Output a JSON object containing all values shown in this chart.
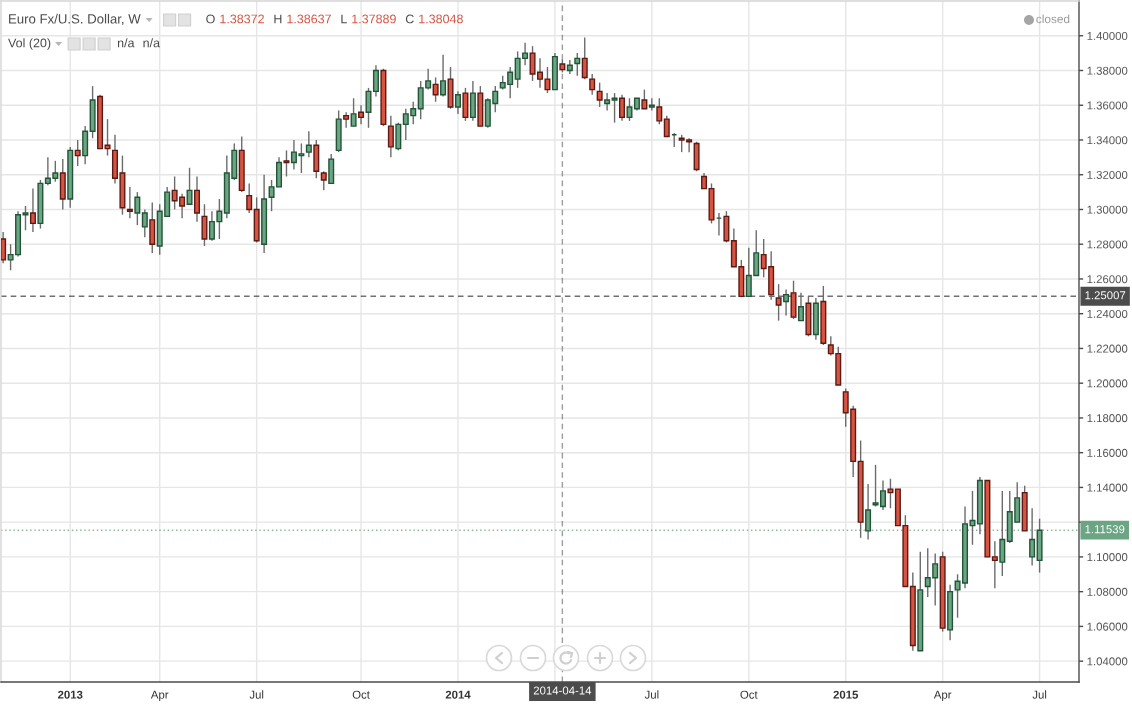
{
  "chart_data": {
    "type": "candlestick",
    "title": "Euro Fx/U.S. Dollar, W",
    "annotations": [
      "O 1.38372",
      "H 1.38637",
      "L 1.37889",
      "C 1.38048",
      "Vol (20)",
      "n/a",
      "n/a",
      "closed"
    ],
    "x": [
      "2012-11-05",
      "2012-11-12",
      "2012-11-19",
      "2012-11-26",
      "2012-12-03",
      "2012-12-10",
      "2012-12-17",
      "2012-12-24",
      "2012-12-31",
      "2013-01-07",
      "2013-01-14",
      "2013-01-21",
      "2013-01-28",
      "2013-02-04",
      "2013-02-11",
      "2013-02-18",
      "2013-02-25",
      "2013-03-04",
      "2013-03-11",
      "2013-03-18",
      "2013-03-25",
      "2013-04-01",
      "2013-04-08",
      "2013-04-15",
      "2013-04-22",
      "2013-04-29",
      "2013-05-06",
      "2013-05-13",
      "2013-05-20",
      "2013-05-27",
      "2013-06-03",
      "2013-06-10",
      "2013-06-17",
      "2013-06-24",
      "2013-07-01",
      "2013-07-08",
      "2013-07-15",
      "2013-07-22",
      "2013-07-29",
      "2013-08-05",
      "2013-08-12",
      "2013-08-19",
      "2013-08-26",
      "2013-09-02",
      "2013-09-09",
      "2013-09-16",
      "2013-09-23",
      "2013-09-30",
      "2013-10-07",
      "2013-10-14",
      "2013-10-21",
      "2013-10-28",
      "2013-11-04",
      "2013-11-11",
      "2013-11-18",
      "2013-11-25",
      "2013-12-02",
      "2013-12-09",
      "2013-12-16",
      "2013-12-23",
      "2013-12-30",
      "2014-01-06",
      "2014-01-13",
      "2014-01-20",
      "2014-01-27",
      "2014-02-03",
      "2014-02-10",
      "2014-02-17",
      "2014-02-24",
      "2014-03-03",
      "2014-03-10",
      "2014-03-17",
      "2014-03-24",
      "2014-03-31",
      "2014-04-07",
      "2014-04-14",
      "2014-04-21",
      "2014-04-28",
      "2014-05-05",
      "2014-05-12",
      "2014-05-19",
      "2014-05-26",
      "2014-06-02",
      "2014-06-09",
      "2014-06-16",
      "2014-06-23",
      "2014-06-30",
      "2014-07-07",
      "2014-07-14",
      "2014-07-21",
      "2014-07-28",
      "2014-08-04",
      "2014-08-11",
      "2014-08-18",
      "2014-08-25",
      "2014-09-01",
      "2014-09-08",
      "2014-09-15",
      "2014-09-22",
      "2014-09-29",
      "2014-10-06",
      "2014-10-13",
      "2014-10-20",
      "2014-10-27",
      "2014-11-03",
      "2014-11-10",
      "2014-11-17",
      "2014-11-24",
      "2014-12-01",
      "2014-12-08",
      "2014-12-15",
      "2014-12-22",
      "2014-12-29",
      "2015-01-05",
      "2015-01-12",
      "2015-01-19",
      "2015-01-26",
      "2015-02-02",
      "2015-02-09",
      "2015-02-16",
      "2015-02-23",
      "2015-03-02",
      "2015-03-09",
      "2015-03-16",
      "2015-03-23",
      "2015-03-30",
      "2015-04-06",
      "2015-04-13",
      "2015-04-20",
      "2015-04-27",
      "2015-05-04",
      "2015-05-11",
      "2015-05-18",
      "2015-05-25",
      "2015-06-01",
      "2015-06-08",
      "2015-06-15",
      "2015-06-22",
      "2015-06-29",
      "2015-07-06"
    ],
    "ohlc": [
      [
        1.283,
        1.287,
        1.269,
        1.271
      ],
      [
        1.271,
        1.28,
        1.265,
        1.274
      ],
      [
        1.274,
        1.299,
        1.273,
        1.297
      ],
      [
        1.297,
        1.302,
        1.288,
        1.298
      ],
      [
        1.298,
        1.312,
        1.287,
        1.292
      ],
      [
        1.292,
        1.317,
        1.289,
        1.315
      ],
      [
        1.315,
        1.33,
        1.314,
        1.318
      ],
      [
        1.318,
        1.328,
        1.316,
        1.321
      ],
      [
        1.321,
        1.329,
        1.3,
        1.306
      ],
      [
        1.306,
        1.336,
        1.301,
        1.334
      ],
      [
        1.334,
        1.34,
        1.325,
        1.331
      ],
      [
        1.331,
        1.348,
        1.326,
        1.345
      ],
      [
        1.345,
        1.371,
        1.341,
        1.363
      ],
      [
        1.365,
        1.366,
        1.335,
        1.335
      ],
      [
        1.337,
        1.352,
        1.331,
        1.335
      ],
      [
        1.334,
        1.343,
        1.315,
        1.318
      ],
      [
        1.321,
        1.331,
        1.297,
        1.301
      ],
      [
        1.3,
        1.313,
        1.295,
        1.299
      ],
      [
        1.298,
        1.31,
        1.291,
        1.307
      ],
      [
        1.29,
        1.3,
        1.284,
        1.298
      ],
      [
        1.294,
        1.304,
        1.275,
        1.28
      ],
      [
        1.279,
        1.303,
        1.274,
        1.299
      ],
      [
        1.296,
        1.313,
        1.296,
        1.31
      ],
      [
        1.311,
        1.319,
        1.3,
        1.305
      ],
      [
        1.307,
        1.309,
        1.295,
        1.302
      ],
      [
        1.303,
        1.324,
        1.303,
        1.311
      ],
      [
        1.311,
        1.319,
        1.293,
        1.298
      ],
      [
        1.296,
        1.303,
        1.279,
        1.283
      ],
      [
        1.283,
        1.299,
        1.282,
        1.293
      ],
      [
        1.293,
        1.306,
        1.283,
        1.299
      ],
      [
        1.298,
        1.331,
        1.295,
        1.321
      ],
      [
        1.318,
        1.338,
        1.317,
        1.334
      ],
      [
        1.334,
        1.342,
        1.31,
        1.311
      ],
      [
        1.308,
        1.315,
        1.298,
        1.3
      ],
      [
        1.3,
        1.307,
        1.281,
        1.282
      ],
      [
        1.28,
        1.32,
        1.275,
        1.306
      ],
      [
        1.307,
        1.317,
        1.299,
        1.313
      ],
      [
        1.313,
        1.33,
        1.313,
        1.327
      ],
      [
        1.328,
        1.334,
        1.319,
        1.327
      ],
      [
        1.327,
        1.34,
        1.323,
        1.333
      ],
      [
        1.331,
        1.338,
        1.321,
        1.332
      ],
      [
        1.333,
        1.345,
        1.33,
        1.337
      ],
      [
        1.337,
        1.34,
        1.318,
        1.322
      ],
      [
        1.321,
        1.322,
        1.311,
        1.317
      ],
      [
        1.315,
        1.332,
        1.315,
        1.329
      ],
      [
        1.334,
        1.357,
        1.333,
        1.352
      ],
      [
        1.354,
        1.356,
        1.347,
        1.352
      ],
      [
        1.348,
        1.364,
        1.348,
        1.355
      ],
      [
        1.356,
        1.36,
        1.349,
        1.353
      ],
      [
        1.356,
        1.37,
        1.347,
        1.368
      ],
      [
        1.368,
        1.383,
        1.365,
        1.38
      ],
      [
        1.38,
        1.381,
        1.348,
        1.349
      ],
      [
        1.348,
        1.354,
        1.33,
        1.336
      ],
      [
        1.335,
        1.35,
        1.334,
        1.349
      ],
      [
        1.349,
        1.358,
        1.34,
        1.355
      ],
      [
        1.354,
        1.362,
        1.349,
        1.358
      ],
      [
        1.358,
        1.374,
        1.352,
        1.37
      ],
      [
        1.37,
        1.381,
        1.369,
        1.374
      ],
      [
        1.372,
        1.376,
        1.362,
        1.366
      ],
      [
        1.366,
        1.389,
        1.365,
        1.374
      ],
      [
        1.375,
        1.382,
        1.358,
        1.359
      ],
      [
        1.359,
        1.368,
        1.355,
        1.366
      ],
      [
        1.367,
        1.37,
        1.351,
        1.353
      ],
      [
        1.353,
        1.374,
        1.351,
        1.367
      ],
      [
        1.367,
        1.371,
        1.348,
        1.348
      ],
      [
        1.348,
        1.364,
        1.347,
        1.363
      ],
      [
        1.361,
        1.371,
        1.356,
        1.368
      ],
      [
        1.37,
        1.377,
        1.369,
        1.373
      ],
      [
        1.372,
        1.382,
        1.364,
        1.379
      ],
      [
        1.375,
        1.391,
        1.37,
        1.387
      ],
      [
        1.387,
        1.396,
        1.383,
        1.39
      ],
      [
        1.39,
        1.394,
        1.374,
        1.378
      ],
      [
        1.379,
        1.387,
        1.37,
        1.375
      ],
      [
        1.375,
        1.382,
        1.367,
        1.369
      ],
      [
        1.369,
        1.39,
        1.369,
        1.388
      ],
      [
        1.38372,
        1.38637,
        1.37889,
        1.38048
      ],
      [
        1.38,
        1.386,
        1.378,
        1.383
      ],
      [
        1.384,
        1.39,
        1.377,
        1.387
      ],
      [
        1.387,
        1.399,
        1.375,
        1.376
      ],
      [
        1.375,
        1.378,
        1.366,
        1.369
      ],
      [
        1.368,
        1.373,
        1.359,
        1.363
      ],
      [
        1.361,
        1.367,
        1.357,
        1.363
      ],
      [
        1.363,
        1.367,
        1.35,
        1.364
      ],
      [
        1.364,
        1.366,
        1.351,
        1.353
      ],
      [
        1.353,
        1.364,
        1.351,
        1.359
      ],
      [
        1.358,
        1.364,
        1.357,
        1.364
      ],
      [
        1.363,
        1.369,
        1.358,
        1.358
      ],
      [
        1.359,
        1.364,
        1.357,
        1.36
      ],
      [
        1.359,
        1.364,
        1.349,
        1.351
      ],
      [
        1.352,
        1.354,
        1.342,
        1.342
      ],
      [
        1.343,
        1.344,
        1.336,
        1.343
      ],
      [
        1.341,
        1.343,
        1.333,
        1.34
      ],
      [
        1.34,
        1.341,
        1.333,
        1.339
      ],
      [
        1.338,
        1.339,
        1.322,
        1.323
      ],
      [
        1.319,
        1.321,
        1.312,
        1.312
      ],
      [
        1.312,
        1.315,
        1.292,
        1.294
      ],
      [
        1.295,
        1.298,
        1.285,
        1.295
      ],
      [
        1.296,
        1.299,
        1.281,
        1.282
      ],
      [
        1.282,
        1.289,
        1.267,
        1.267
      ],
      [
        1.267,
        1.271,
        1.25,
        1.25
      ],
      [
        1.25,
        1.278,
        1.25,
        1.262
      ],
      [
        1.262,
        1.288,
        1.262,
        1.275
      ],
      [
        1.274,
        1.283,
        1.261,
        1.266
      ],
      [
        1.267,
        1.276,
        1.248,
        1.251
      ],
      [
        1.249,
        1.257,
        1.236,
        1.245
      ],
      [
        1.247,
        1.254,
        1.239,
        1.251
      ],
      [
        1.252,
        1.259,
        1.237,
        1.238
      ],
      [
        1.236,
        1.252,
        1.236,
        1.244
      ],
      [
        1.246,
        1.25,
        1.227,
        1.228
      ],
      [
        1.228,
        1.249,
        1.225,
        1.246
      ],
      [
        1.247,
        1.256,
        1.222,
        1.223
      ],
      [
        1.222,
        1.227,
        1.216,
        1.217
      ],
      [
        1.217,
        1.221,
        1.199,
        1.199
      ],
      [
        1.195,
        1.197,
        1.175,
        1.183
      ],
      [
        1.185,
        1.187,
        1.146,
        1.155
      ],
      [
        1.155,
        1.167,
        1.111,
        1.12
      ],
      [
        1.115,
        1.142,
        1.11,
        1.127
      ],
      [
        1.13,
        1.153,
        1.129,
        1.131
      ],
      [
        1.129,
        1.144,
        1.127,
        1.138
      ],
      [
        1.139,
        1.145,
        1.128,
        1.137
      ],
      [
        1.139,
        1.139,
        1.118,
        1.118
      ],
      [
        1.118,
        1.124,
        1.083,
        1.083
      ],
      [
        1.083,
        1.091,
        1.046,
        1.049
      ],
      [
        1.046,
        1.103,
        1.046,
        1.081
      ],
      [
        1.083,
        1.105,
        1.077,
        1.088
      ],
      [
        1.088,
        1.102,
        1.072,
        1.096
      ],
      [
        1.1,
        1.103,
        1.057,
        1.059
      ],
      [
        1.058,
        1.084,
        1.052,
        1.08
      ],
      [
        1.081,
        1.09,
        1.065,
        1.086
      ],
      [
        1.085,
        1.129,
        1.082,
        1.119
      ],
      [
        1.118,
        1.138,
        1.107,
        1.121
      ],
      [
        1.119,
        1.146,
        1.113,
        1.144
      ],
      [
        1.144,
        1.144,
        1.1,
        1.1
      ],
      [
        1.1,
        1.109,
        1.082,
        1.098
      ],
      [
        1.097,
        1.138,
        1.089,
        1.11
      ],
      [
        1.109,
        1.138,
        1.108,
        1.126
      ],
      [
        1.12,
        1.143,
        1.12,
        1.134
      ],
      [
        1.137,
        1.141,
        1.115,
        1.115
      ],
      [
        1.1,
        1.128,
        1.095,
        1.11
      ],
      [
        1.098,
        1.122,
        1.091,
        1.11539
      ]
    ],
    "xlim": [
      "2012-11-03",
      "2015-08-12"
    ],
    "xticks": [
      {
        "value": "2013-01-07",
        "label": "2013"
      },
      {
        "value": "2013-04-01",
        "label": "Apr"
      },
      {
        "value": "2013-07-01",
        "label": "Jul"
      },
      {
        "value": "2013-10-07",
        "label": "Oct"
      },
      {
        "value": "2014-01-06",
        "label": "2014"
      },
      {
        "value": "2014-04-07",
        "label": null
      },
      {
        "value": "2014-07-07",
        "label": "Jul"
      },
      {
        "value": "2014-10-06",
        "label": "Oct"
      },
      {
        "value": "2015-01-05",
        "label": "2015"
      },
      {
        "value": "2015-04-06",
        "label": "Apr"
      },
      {
        "value": "2015-07-06",
        "label": "Jul"
      }
    ],
    "ylim": [
      1.028,
      1.42
    ],
    "yticks": [
      {
        "value": 1.04,
        "label": "1.04000"
      },
      {
        "value": 1.06,
        "label": "1.06000"
      },
      {
        "value": 1.08,
        "label": "1.08000"
      },
      {
        "value": 1.1,
        "label": "1.10000"
      },
      {
        "value": 1.12,
        "label": null
      },
      {
        "value": 1.14,
        "label": "1.14000"
      },
      {
        "value": 1.16,
        "label": "1.16000"
      },
      {
        "value": 1.18,
        "label": "1.18000"
      },
      {
        "value": 1.2,
        "label": "1.20000"
      },
      {
        "value": 1.22,
        "label": "1.22000"
      },
      {
        "value": 1.24,
        "label": "1.24000"
      },
      {
        "value": 1.26,
        "label": "1.26000"
      },
      {
        "value": 1.28,
        "label": "1.28000"
      },
      {
        "value": 1.3,
        "label": "1.30000"
      },
      {
        "value": 1.32,
        "label": "1.32000"
      },
      {
        "value": 1.34,
        "label": "1.34000"
      },
      {
        "value": 1.36,
        "label": "1.36000"
      },
      {
        "value": 1.38,
        "label": "1.38000"
      },
      {
        "value": 1.4,
        "label": "1.40000"
      }
    ],
    "ref_lines": [
      {
        "axis": "x",
        "value": "2014-04-14",
        "label": "2014-04-14",
        "line_style": "dashed",
        "color": "#4c4c4c"
      },
      {
        "axis": "y",
        "value": 1.25007,
        "label": "1.25007",
        "line_style": "dashed",
        "color": "#4c4c4c"
      },
      {
        "axis": "y",
        "value": 1.11539,
        "label": "1.11539",
        "line_style": "dotted",
        "color": "#6ba583"
      }
    ],
    "grid": true
  }
}
